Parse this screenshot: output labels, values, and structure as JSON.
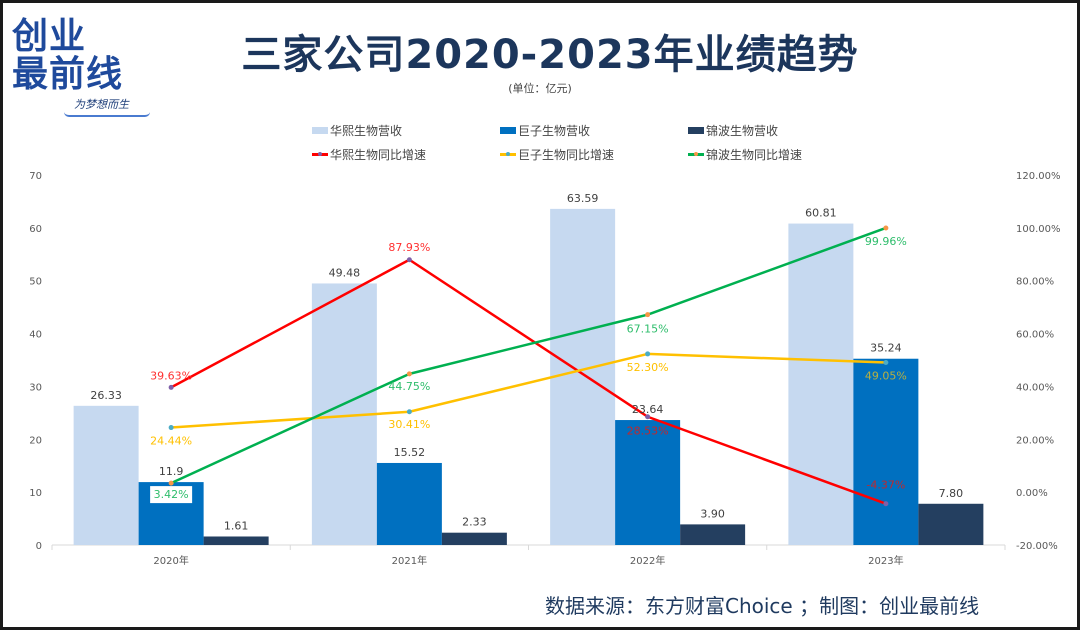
{
  "logo": {
    "line1": "创业",
    "line2": "最前线",
    "slogan": "为梦想而生"
  },
  "header": {
    "title": "三家公司2020-2023年业绩趋势",
    "unit": "(单位：亿元)"
  },
  "footer": {
    "source": "数据来源：东方财富Choice ；制图：创业最前线"
  },
  "colors": {
    "huaxi_bar": "#c6d9f0",
    "juzi_bar": "#0070c0",
    "jinbo_bar": "#243f60",
    "huaxi_line": "#ff0000",
    "juzi_line": "#ffc000",
    "jinbo_line": "#00b050",
    "title": "#1c365c"
  },
  "chart_data": {
    "type": "bar+line",
    "title": "三家公司2020-2023年业绩趋势",
    "subtitle": "(单位：亿元)",
    "categories": [
      "2020年",
      "2021年",
      "2022年",
      "2023年"
    ],
    "left_axis": {
      "ylim": [
        0,
        70
      ],
      "ticks": [
        "0",
        "10",
        "20",
        "30",
        "40",
        "50",
        "60",
        "70"
      ]
    },
    "right_axis": {
      "ylim": [
        -20,
        120
      ],
      "ticks": [
        "-20.00%",
        "0.00%",
        "20.00%",
        "40.00%",
        "60.00%",
        "80.00%",
        "100.00%",
        "120.00%"
      ]
    },
    "grid": false,
    "legend_position": "top",
    "bar_series": [
      {
        "name": "华熙生物营收",
        "values": [
          26.33,
          49.48,
          63.59,
          60.81
        ],
        "labels": [
          "26.33",
          "49.48",
          "63.59",
          "60.81"
        ]
      },
      {
        "name": "巨子生物营收",
        "values": [
          11.9,
          15.52,
          23.64,
          35.24
        ],
        "labels": [
          "11.9",
          "15.52",
          "23.64",
          "35.24"
        ]
      },
      {
        "name": "锦波生物营收",
        "values": [
          1.61,
          2.33,
          3.9,
          7.8
        ],
        "labels": [
          "1.61",
          "2.33",
          "3.90",
          "7.80"
        ]
      }
    ],
    "line_series": [
      {
        "name": "华熙生物同比增速",
        "values": [
          39.63,
          87.93,
          28.53,
          -4.37
        ],
        "labels": [
          "39.63%",
          "87.93%",
          "28.53%",
          "-4.37%"
        ]
      },
      {
        "name": "巨子生物同比增速",
        "values": [
          24.44,
          30.41,
          52.3,
          49.05
        ],
        "labels": [
          "24.44%",
          "30.41%",
          "52.30%",
          "49.05%"
        ]
      },
      {
        "name": "锦波生物同比增速",
        "values": [
          3.42,
          44.75,
          67.15,
          99.96
        ],
        "labels": [
          "3.42%",
          "44.75%",
          "67.15%",
          "99.96%"
        ]
      }
    ]
  }
}
